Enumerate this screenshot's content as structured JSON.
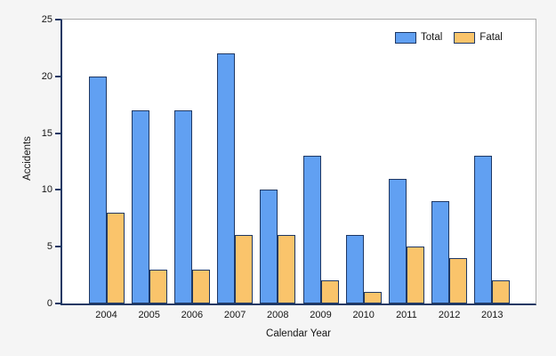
{
  "chart_data": {
    "type": "bar",
    "title": "",
    "categories": [
      "2004",
      "2005",
      "2006",
      "2007",
      "2008",
      "2009",
      "2010",
      "2011",
      "2012",
      "2013"
    ],
    "series": [
      {
        "name": "Total",
        "color": "#61A0F2",
        "values": [
          20,
          17,
          17,
          22,
          10,
          13,
          6,
          11,
          9,
          13
        ]
      },
      {
        "name": "Fatal",
        "color": "#FAC46B",
        "values": [
          8,
          3,
          3,
          6,
          6,
          2,
          1,
          5,
          4,
          2
        ]
      }
    ],
    "xlabel": "Calendar Year",
    "ylabel": "Accidents",
    "ylim": [
      0,
      25
    ],
    "yticks": [
      0,
      5,
      10,
      15,
      20,
      25
    ],
    "grid": false,
    "legend_position": "top-right-inside",
    "bar_border_color": "#1F3864",
    "axis_color": "#1F3864",
    "plot_border_color": "#ABABAB",
    "background_color": "#F5F5F5",
    "plot_background_color": "#FFFFFF"
  }
}
